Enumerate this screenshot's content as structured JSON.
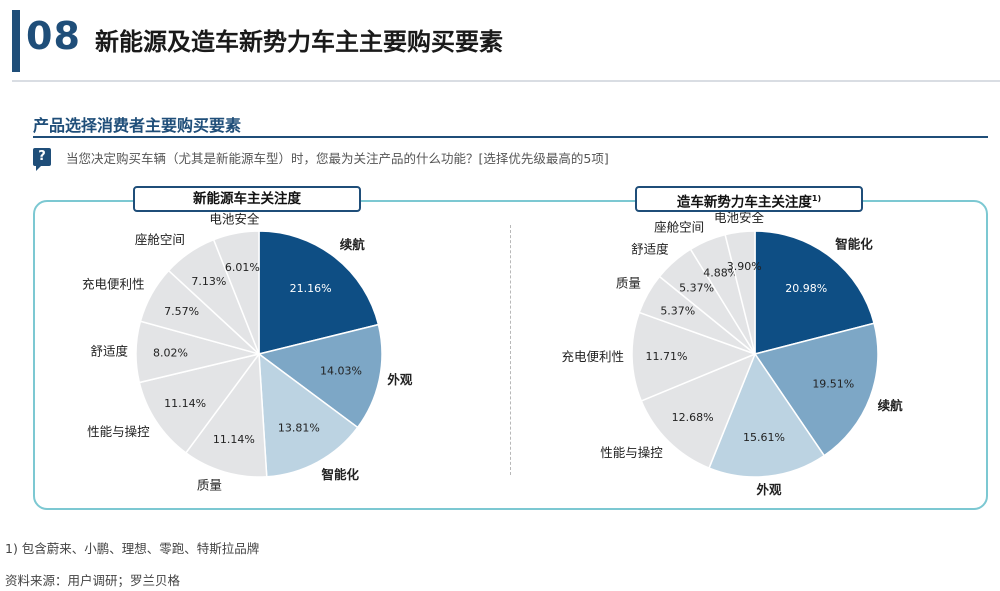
{
  "header": {
    "number": "08",
    "title": "新能源及造车新势力车主主要购买要素"
  },
  "section": {
    "title": "产品选择消费者主要购买要素",
    "question_icon": "?",
    "question": "当您决定购买车辆（尤其是新能源车型）时，您最为关注产品的什么功能？[选择优先级最高的5项]"
  },
  "colors": {
    "dark": "#0e4e84",
    "mid": "#7da7c6",
    "light": "#bcd3e2",
    "gray": "#e3e4e6",
    "border": "#7cc8d2"
  },
  "chart_data": [
    {
      "type": "pie",
      "title": "新能源车主关注度",
      "title_sup": "",
      "slices": [
        {
          "label": "续航",
          "value": 21.16,
          "value_label": "21.16%",
          "color": "dark"
        },
        {
          "label": "外观",
          "value": 14.03,
          "value_label": "14.03%",
          "color": "mid"
        },
        {
          "label": "智能化",
          "value": 13.81,
          "value_label": "13.81%",
          "color": "light"
        },
        {
          "label": "质量",
          "value": 11.14,
          "value_label": "11.14%",
          "color": "gray"
        },
        {
          "label": "性能与操控",
          "value": 11.14,
          "value_label": "11.14%",
          "color": "gray"
        },
        {
          "label": "舒适度",
          "value": 8.02,
          "value_label": "8.02%",
          "color": "gray"
        },
        {
          "label": "充电便利性",
          "value": 7.57,
          "value_label": "7.57%",
          "color": "gray"
        },
        {
          "label": "座舱空间",
          "value": 7.13,
          "value_label": "7.13%",
          "color": "gray"
        },
        {
          "label": "电池安全",
          "value": 6.01,
          "value_label": "6.01%",
          "color": "gray"
        }
      ]
    },
    {
      "type": "pie",
      "title": "造车新势力车主关注度",
      "title_sup": "1)",
      "slices": [
        {
          "label": "智能化",
          "value": 20.98,
          "value_label": "20.98%",
          "color": "dark"
        },
        {
          "label": "续航",
          "value": 19.51,
          "value_label": "19.51%",
          "color": "mid"
        },
        {
          "label": "外观",
          "value": 15.61,
          "value_label": "15.61%",
          "color": "light"
        },
        {
          "label": "性能与操控",
          "value": 12.68,
          "value_label": "12.68%",
          "color": "gray"
        },
        {
          "label": "充电便利性",
          "value": 11.71,
          "value_label": "11.71%",
          "color": "gray"
        },
        {
          "label": "质量",
          "value": 5.37,
          "value_label": "5.37%",
          "color": "gray"
        },
        {
          "label": "舒适度",
          "value": 5.37,
          "value_label": "5.37%",
          "color": "gray"
        },
        {
          "label": "座舱空间",
          "value": 4.88,
          "value_label": "4.88%",
          "color": "gray"
        },
        {
          "label": "电池安全",
          "value": 3.9,
          "value_label": "3.90%",
          "color": "gray"
        }
      ]
    }
  ],
  "footnotes": {
    "note1": "1) 包含蔚来、小鹏、理想、零跑、特斯拉品牌",
    "source": "资料来源：用户调研；罗兰贝格"
  }
}
